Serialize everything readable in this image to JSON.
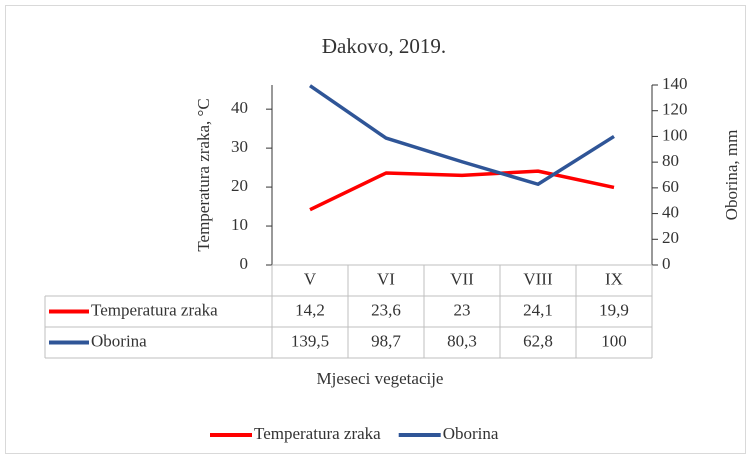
{
  "chart_data": {
    "type": "line",
    "title": "Đakovo, 2019.",
    "xlabel": "Mjeseci vegetacije",
    "ylabel": "Temperatura zraka, °C",
    "y2label": "Oborina, mm",
    "categories": [
      "V",
      "VI",
      "VII",
      "VIII",
      "IX"
    ],
    "series": [
      {
        "name": "Temperatura zraka",
        "color": "#ff0000",
        "values": [
          14.2,
          23.6,
          23,
          24.1,
          19.9
        ],
        "value_labels": [
          "14,2",
          "23,6",
          "23",
          "24,1",
          "19,9"
        ]
      },
      {
        "name": "Oborina",
        "color": "#2f5597",
        "axis": "y2",
        "values": [
          139.5,
          98.7,
          80.3,
          62.8,
          100
        ],
        "value_labels": [
          "139,5",
          "98,7",
          "80,3",
          "62,8",
          "100"
        ]
      }
    ],
    "ylim": [
      0,
      46.2
    ],
    "yticks": [
      0,
      10,
      20,
      30,
      40
    ],
    "y2lim": [
      0,
      140
    ],
    "y2ticks": [
      0,
      20,
      40,
      60,
      80,
      100,
      120,
      140
    ],
    "legend": "bottom",
    "data_table": true
  }
}
